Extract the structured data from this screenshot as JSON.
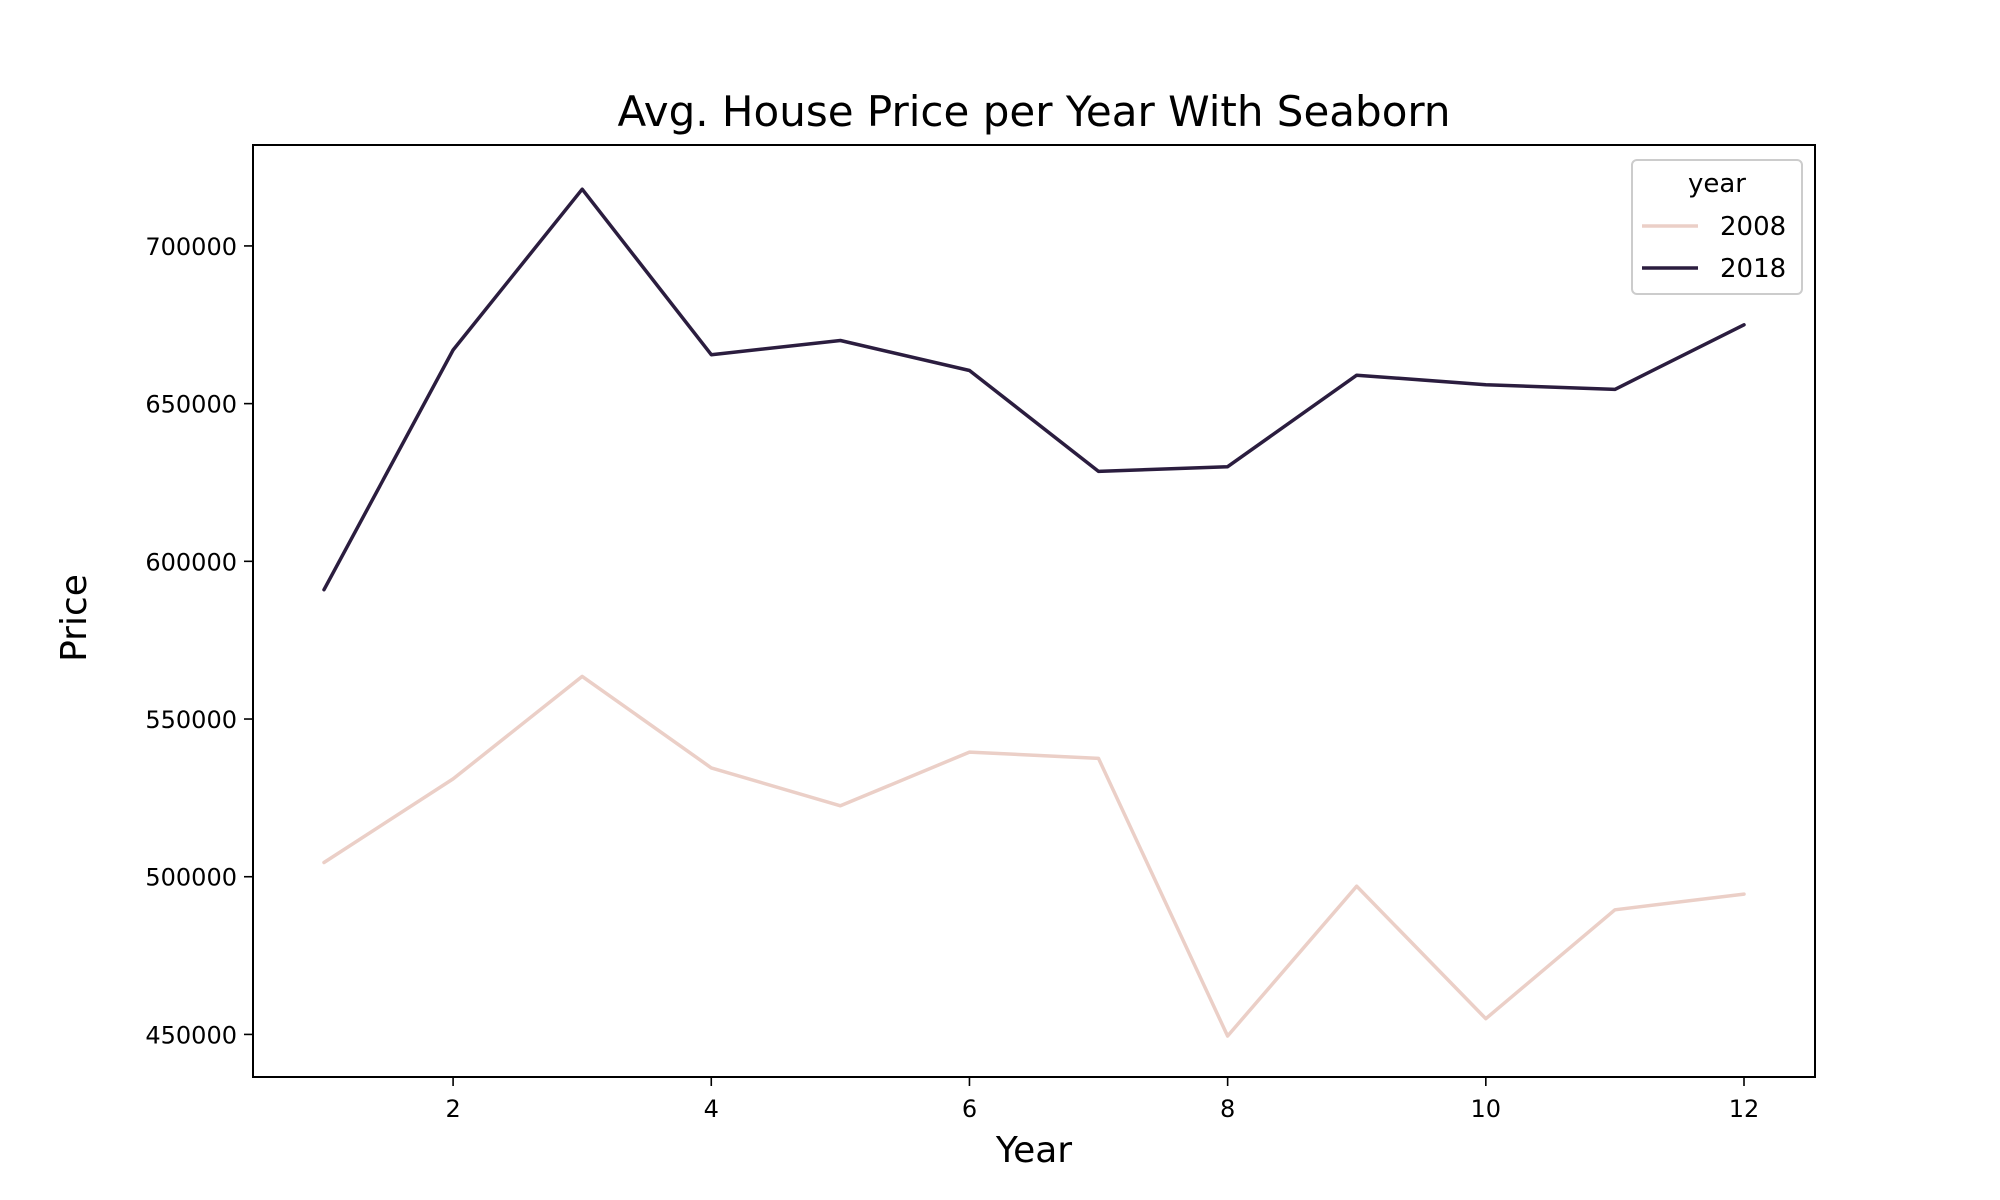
{
  "chart_data": {
    "type": "line",
    "title": "Avg. House Price per Year With Seaborn",
    "xlabel": "Year",
    "ylabel": "Price",
    "x": [
      1,
      2,
      3,
      4,
      5,
      6,
      7,
      8,
      9,
      10,
      11,
      12
    ],
    "xlim": [
      0.45,
      12.55
    ],
    "ylim": [
      436500,
      732000
    ],
    "xticks": [
      2,
      4,
      6,
      8,
      10,
      12
    ],
    "yticks": [
      450000,
      500000,
      550000,
      600000,
      650000,
      700000
    ],
    "grid": false,
    "legend": {
      "title": "year",
      "placement": "top-right"
    },
    "series": [
      {
        "name": "2008",
        "color": "#ebcfc7",
        "values": [
          504500,
          531000,
          563500,
          534500,
          522500,
          539500,
          537500,
          449500,
          497000,
          455000,
          489500,
          494500
        ]
      },
      {
        "name": "2018",
        "color": "#2b1d3f",
        "values": [
          591000,
          667000,
          718000,
          665500,
          670000,
          660500,
          628500,
          630000,
          659000,
          656000,
          654500,
          675000
        ]
      }
    ]
  }
}
